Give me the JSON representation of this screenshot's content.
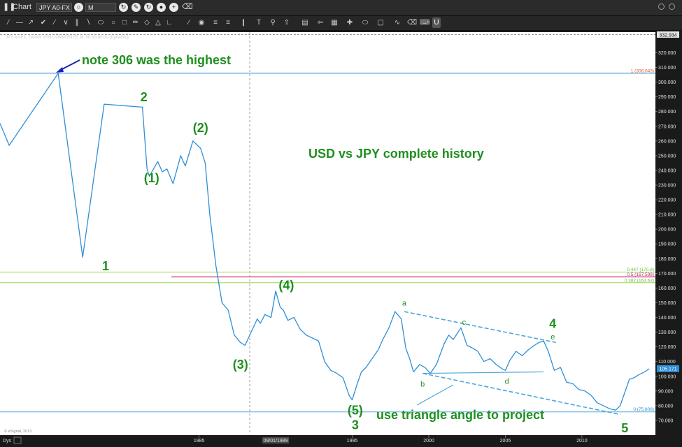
{
  "window": {
    "title": "Chart"
  },
  "toolbar": {
    "symbol": "JPY A0-FX",
    "interval": "M",
    "u_label": "U"
  },
  "chart_data": {
    "type": "line",
    "symbol_line": "JPY A0-FX, JAPAN YEN COMPOSITE, M, 00:00-00:00 (Dynamic)",
    "yticks": [
      70,
      80,
      90,
      100,
      110,
      120,
      130,
      140,
      150,
      160,
      170,
      180,
      190,
      200,
      210,
      220,
      230,
      240,
      250,
      260,
      270,
      280,
      290,
      300,
      310,
      320
    ],
    "ytick_labels": [
      "70.000",
      "80.000",
      "90.000",
      "100.000",
      "110.000",
      "120.000",
      "130.000",
      "140.000",
      "150.000",
      "160.000",
      "170.000",
      "180.000",
      "190.000",
      "200.000",
      "210.000",
      "220.000",
      "230.000",
      "240.000",
      "250.000",
      "260.000",
      "270.000",
      "280.000",
      "290.000",
      "300.000",
      "310.000",
      "320.000"
    ],
    "ylim": [
      60,
      334
    ],
    "xlim": [
      1972,
      2014.8
    ],
    "xticks": [
      1985,
      1990,
      1995,
      2000,
      2005,
      2010
    ],
    "xtick_labels": [
      "1985",
      "09/01/1989",
      "1995",
      "2000",
      "2005",
      "2010"
    ],
    "cursor_date": "09/01/1989",
    "top_value": "332.934",
    "last_value": "105.171",
    "last_price": 105.171,
    "series": [
      {
        "x": [
          1972.0,
          1972.6,
          1975.8,
          1977.4,
          1978.8,
          1981.3,
          1981.6,
          1981.75,
          1982.3,
          1982.6,
          1982.9,
          1983.3,
          1983.8,
          1984.1,
          1984.6,
          1985.1,
          1985.4,
          1985.7,
          1986.1,
          1986.5,
          1986.9,
          1987.3,
          1987.7,
          1988.0,
          1988.4,
          1988.8,
          1989.0,
          1989.3,
          1989.7,
          1990.0,
          1990.3,
          1990.5,
          1990.8,
          1991.2,
          1991.6,
          1992.0,
          1992.4,
          1992.8,
          1993.2,
          1993.6,
          1994.0,
          1994.4,
          1994.8,
          1995.0,
          1995.3,
          1995.6,
          1995.9,
          1996.3,
          1996.7,
          1997.0,
          1997.4,
          1997.8,
          1998.2,
          1998.5,
          1998.75,
          1999.0,
          1999.4,
          1999.75,
          2000.1,
          2000.5,
          2001.0,
          2001.3,
          2001.6,
          2002.1,
          2002.5,
          2002.9,
          2003.2,
          2003.6,
          2004.0,
          2004.4,
          2004.8,
          2005.0,
          2005.3,
          2005.7,
          2006.1,
          2006.5,
          2006.9,
          2007.2,
          2007.5,
          2007.8,
          2008.2,
          2008.6,
          2009.0,
          2009.4,
          2009.8,
          2010.2,
          2010.6,
          2011.0,
          2011.4,
          2011.8,
          2012.2,
          2012.5,
          2012.8,
          2013.1,
          2013.4,
          2013.7,
          2014.1,
          2014.4
        ],
        "values": [
          272,
          257,
          306,
          181,
          285,
          283,
          241,
          236,
          246,
          239,
          241,
          231,
          250,
          243,
          260,
          255,
          245,
          210,
          175,
          150,
          145,
          128,
          123,
          121,
          130,
          139,
          136,
          142,
          140,
          158,
          147,
          145,
          138,
          140,
          132,
          128,
          126,
          124,
          110,
          104,
          102,
          99,
          87,
          84,
          94,
          103,
          106,
          112,
          118,
          125,
          133,
          144,
          139,
          119,
          112,
          103,
          108,
          106,
          102,
          108,
          122,
          128,
          125,
          133,
          121,
          119,
          117,
          110,
          112,
          108,
          105,
          104,
          111,
          117,
          114,
          118,
          121,
          123,
          124,
          117,
          104,
          106,
          96,
          95,
          91,
          90,
          87,
          82,
          80,
          78,
          77,
          80,
          89,
          98,
          99,
          101,
          103,
          105.171
        ]
      }
    ],
    "hlines": [
      {
        "value": 306.043,
        "label": "1 (306.043)",
        "color": "#2f8fd6",
        "label_color": "#e05a28"
      },
      {
        "value": 170.8,
        "label": "0.447 (170.8)",
        "color": "#9ad84a",
        "label_color": "#6cc03a"
      },
      {
        "value": 167.598,
        "label": "0.5 (167.598)",
        "color": "#d33b8a",
        "label_color": "#c0307a"
      },
      {
        "value": 163.63,
        "label": "0.382 (163.63)",
        "color": "#9ad84a",
        "label_color": "#6cc03a"
      },
      {
        "value": 75.8,
        "label": "0 (75.808)",
        "color": "#4aa8dc",
        "label_color": "#2f8fd6"
      }
    ],
    "triangle": {
      "upper": {
        "x1": 1998.4,
        "y1": 144,
        "x2": 2008.3,
        "y2": 123
      },
      "lower": {
        "x1": 1999.6,
        "y1": 102,
        "x2": 2007.5,
        "y2": 103
      },
      "projection": {
        "x1": 1999.6,
        "y1": 102,
        "x2": 2012.5,
        "y2": 74
      }
    },
    "wave_labels": [
      {
        "text": "2",
        "x": 1981.4,
        "y": 287
      },
      {
        "text": "(2)",
        "x": 1985.1,
        "y": 266
      },
      {
        "text": "(1)",
        "x": 1981.9,
        "y": 232
      },
      {
        "text": "1",
        "x": 1978.9,
        "y": 172
      },
      {
        "text": "(4)",
        "x": 1990.7,
        "y": 159
      },
      {
        "text": "(3)",
        "x": 1987.7,
        "y": 105
      },
      {
        "text": "(5)",
        "x": 1995.2,
        "y": 74
      },
      {
        "text": "3",
        "x": 1995.2,
        "y": 64
      },
      {
        "text": "4",
        "x": 2008.1,
        "y": 133
      },
      {
        "text": "5",
        "x": 2012.8,
        "y": 62
      }
    ],
    "triangle_labels": [
      {
        "text": "a",
        "x": 1998.4,
        "y": 148
      },
      {
        "text": "b",
        "x": 1999.6,
        "y": 93
      },
      {
        "text": "c",
        "x": 2002.3,
        "y": 135
      },
      {
        "text": "d",
        "x": 2005.1,
        "y": 95
      },
      {
        "text": "e",
        "x": 2008.1,
        "y": 125
      }
    ],
    "annotations": {
      "highest_note": "note 306 was the highest",
      "chart_title": "USD vs JPY complete history",
      "triangle_note": "use triangle angle to project"
    },
    "copyright": "© eSignal, 2013",
    "dys_label": "Dys",
    "colors": {
      "price": "#2f8fd6",
      "label": "#1f8f1f",
      "axis_text": "#e0e0e0",
      "background": "#ffffff",
      "frame": "#1a1a1a",
      "arrow": "#1f1fbf"
    }
  }
}
